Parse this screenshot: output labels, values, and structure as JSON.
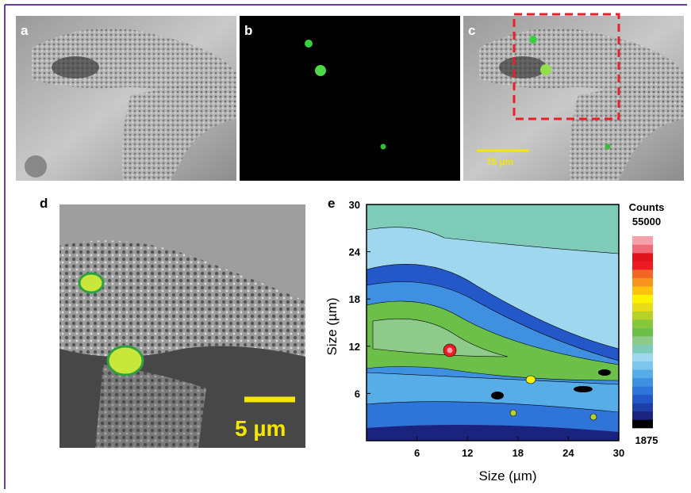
{
  "panels": [
    "a",
    "b",
    "c",
    "d",
    "e"
  ],
  "scale_bars": [
    "15 µm",
    "5 µm"
  ],
  "chart_data": {
    "type": "contour",
    "xlabel": "Size (µm)",
    "ylabel": "Size (µm)",
    "xlim": [
      0,
      30
    ],
    "ylim": [
      0,
      30
    ],
    "xticks": [
      6,
      12,
      18,
      24,
      30
    ],
    "yticks": [
      6,
      12,
      18,
      24,
      30
    ],
    "colorbar_title": "Counts",
    "clim": [
      1875,
      55000
    ],
    "colorscale": [
      "#000000",
      "#1a237e",
      "#1e3fa8",
      "#2458c8",
      "#2f74d8",
      "#3f90e0",
      "#56ade8",
      "#7cc5ee",
      "#9fd8ee",
      "#7ecbb8",
      "#8ecb8a",
      "#6cc04a",
      "#86c83c",
      "#b7d12b",
      "#e6dc1a",
      "#fff200",
      "#ffc20e",
      "#f7941d",
      "#f26522",
      "#ed1c24",
      "#e0141c",
      "#f06a7a",
      "#f5a0aa"
    ]
  }
}
